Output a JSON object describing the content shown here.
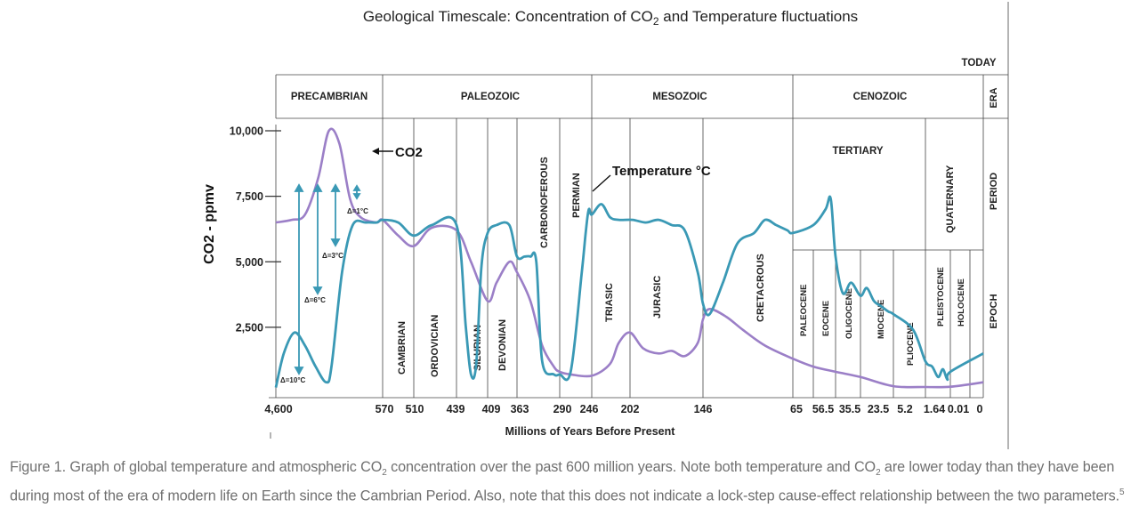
{
  "chart_data": {
    "type": "line",
    "title": "Geological Timescale: Concentration of CO₂ and Temperature fluctuations",
    "xlabel": "Millions of Years Before Present",
    "ylabel": "CO2 - ppmv",
    "y_ticks": [
      {
        "label": "2,500",
        "value": 2500
      },
      {
        "label": "5,000",
        "value": 5000
      },
      {
        "label": "7,500",
        "value": 7500
      },
      {
        "label": "10,000",
        "value": 10000
      }
    ],
    "x_ticks": [
      "4,600",
      "570",
      "510",
      "439",
      "409",
      "363",
      "290",
      "246",
      "202",
      "146",
      "65",
      "56.5",
      "35.5",
      "23.5",
      "5.2",
      "1.64",
      "0.01",
      "0"
    ],
    "today_label": "TODAY",
    "row_labels": {
      "era": "ERA",
      "period": "PERIOD",
      "epoch": "EPOCH"
    },
    "eras": [
      "PRECAMBRIAN",
      "PALEOZOIC",
      "MESOZOIC",
      "CENOZOIC"
    ],
    "tertiary_label": "TERTIARY",
    "periods": [
      "CAMBRIAN",
      "ORDOVICIAN",
      "SILURIAN",
      "DEVONIAN",
      "CARBONOFEROUS",
      "PERMIAN",
      "TRIASIC",
      "JURASIC",
      "CRETACROUS",
      "QUATERNARY"
    ],
    "epochs": [
      "PALEOCENE",
      "EOCENE",
      "OLIGOCENE",
      "MIOCENE",
      "PLIOCENE",
      "PLEISTOCENE",
      "HOLOCENE"
    ],
    "temperature_deltas": [
      "Δ=1°C",
      "Δ=3°C",
      "Δ=6°C",
      "Δ=10°C"
    ],
    "annotations": {
      "co2": "CO2",
      "temperature": "Temperature °C"
    },
    "series": [
      {
        "name": "CO2",
        "color": "#9b7fc7",
        "points": [
          [
            4600,
            6500
          ],
          [
            4000,
            6600
          ],
          [
            3500,
            6800
          ],
          [
            3000,
            8200
          ],
          [
            2600,
            10000
          ],
          [
            2200,
            9500
          ],
          [
            1800,
            7400
          ],
          [
            1400,
            6700
          ],
          [
            800,
            6500
          ],
          [
            570,
            6600
          ],
          [
            540,
            6000
          ],
          [
            510,
            5600
          ],
          [
            480,
            6300
          ],
          [
            439,
            6200
          ],
          [
            425,
            5000
          ],
          [
            409,
            3500
          ],
          [
            395,
            4200
          ],
          [
            375,
            5000
          ],
          [
            363,
            4600
          ],
          [
            340,
            3500
          ],
          [
            320,
            1800
          ],
          [
            300,
            1000
          ],
          [
            290,
            800
          ],
          [
            275,
            700
          ],
          [
            246,
            650
          ],
          [
            225,
            1100
          ],
          [
            215,
            1900
          ],
          [
            202,
            2300
          ],
          [
            192,
            1700
          ],
          [
            180,
            1500
          ],
          [
            170,
            1600
          ],
          [
            160,
            1400
          ],
          [
            150,
            1900
          ],
          [
            146,
            2800
          ],
          [
            140,
            3200
          ],
          [
            125,
            2900
          ],
          [
            110,
            2400
          ],
          [
            90,
            1800
          ],
          [
            65,
            1300
          ],
          [
            56.5,
            1000
          ],
          [
            35.5,
            800
          ],
          [
            23.5,
            600
          ],
          [
            5.2,
            250
          ],
          [
            1.64,
            220
          ],
          [
            0.01,
            230
          ],
          [
            0,
            400
          ]
        ]
      },
      {
        "name": "Temperature °C",
        "color": "#3a99b5",
        "points": [
          [
            4600,
            200
          ],
          [
            4300,
            1500
          ],
          [
            3900,
            2300
          ],
          [
            3500,
            1800
          ],
          [
            3100,
            1000
          ],
          [
            2700,
            400
          ],
          [
            2500,
            1000
          ],
          [
            2100,
            4600
          ],
          [
            1700,
            6400
          ],
          [
            1200,
            6500
          ],
          [
            800,
            6500
          ],
          [
            570,
            6600
          ],
          [
            540,
            6500
          ],
          [
            510,
            6000
          ],
          [
            480,
            6400
          ],
          [
            439,
            6400
          ],
          [
            430,
            2500
          ],
          [
            425,
            700
          ],
          [
            420,
            1100
          ],
          [
            415,
            4800
          ],
          [
            409,
            6100
          ],
          [
            395,
            6400
          ],
          [
            375,
            6400
          ],
          [
            363,
            5200
          ],
          [
            350,
            5200
          ],
          [
            340,
            5200
          ],
          [
            330,
            5000
          ],
          [
            320,
            1200
          ],
          [
            300,
            700
          ],
          [
            290,
            700
          ],
          [
            275,
            800
          ],
          [
            260,
            4500
          ],
          [
            254,
            6200
          ],
          [
            250,
            7000
          ],
          [
            246,
            6800
          ],
          [
            235,
            7200
          ],
          [
            225,
            6700
          ],
          [
            215,
            6600
          ],
          [
            200,
            6600
          ],
          [
            190,
            6500
          ],
          [
            180,
            6600
          ],
          [
            170,
            6400
          ],
          [
            160,
            6200
          ],
          [
            150,
            4600
          ],
          [
            146,
            3400
          ],
          [
            140,
            3000
          ],
          [
            128,
            4200
          ],
          [
            115,
            5700
          ],
          [
            100,
            6100
          ],
          [
            90,
            6600
          ],
          [
            80,
            6400
          ],
          [
            70,
            6200
          ],
          [
            65,
            6100
          ],
          [
            56.5,
            6400
          ],
          [
            45,
            7000
          ],
          [
            40,
            7400
          ],
          [
            35.5,
            5200
          ],
          [
            32,
            3800
          ],
          [
            28,
            4200
          ],
          [
            23.5,
            3700
          ],
          [
            20,
            4000
          ],
          [
            16,
            3500
          ],
          [
            12,
            3300
          ],
          [
            8,
            3100
          ],
          [
            5.2,
            3000
          ],
          [
            3,
            2400
          ],
          [
            1.64,
            1200
          ],
          [
            1.2,
            1000
          ],
          [
            0.8,
            600
          ],
          [
            0.5,
            900
          ],
          [
            0.2,
            500
          ],
          [
            0.01,
            800
          ],
          [
            0,
            1500
          ]
        ]
      }
    ]
  },
  "caption": {
    "p1": "Figure 1. Graph of global temperature and atmospheric CO",
    "sub1": "2",
    "p2": " concentration over the past 600 million years. Note both temperature and CO",
    "sub2": "2",
    "p3": " are lower today than they have been during most of the era of modern life on Earth since the Cambrian Period. Also, note that this does not indicate a lock-step cause-effect relationship between the two parameters.",
    "sup": "5"
  }
}
